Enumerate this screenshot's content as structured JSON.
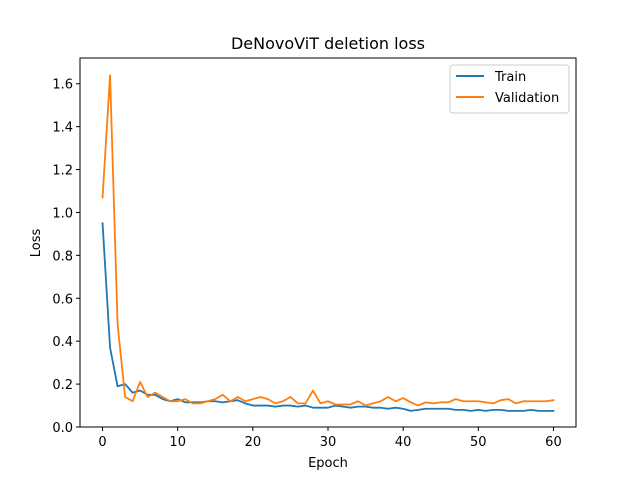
{
  "chart_data": {
    "type": "line",
    "title": "DeNovoViT deletion loss",
    "xlabel": "Epoch",
    "ylabel": "Loss",
    "xlim": [
      -3,
      63
    ],
    "ylim": [
      0,
      1.72
    ],
    "xticks": [
      0,
      10,
      20,
      30,
      40,
      50,
      60
    ],
    "yticks": [
      0.0,
      0.2,
      0.4,
      0.6,
      0.8,
      1.0,
      1.2,
      1.4,
      1.6
    ],
    "ytick_labels": [
      "0.0",
      "0.2",
      "0.4",
      "0.6",
      "0.8",
      "1.0",
      "1.2",
      "1.4",
      "1.6"
    ],
    "legend_position": "top-right",
    "grid": false,
    "series": [
      {
        "name": "Train",
        "color": "#1f77b4",
        "x": [
          0,
          1,
          2,
          3,
          4,
          5,
          6,
          7,
          8,
          9,
          10,
          11,
          12,
          13,
          14,
          15,
          16,
          17,
          18,
          19,
          20,
          21,
          22,
          23,
          24,
          25,
          26,
          27,
          28,
          29,
          30,
          31,
          32,
          33,
          34,
          35,
          36,
          37,
          38,
          39,
          40,
          41,
          42,
          43,
          44,
          45,
          46,
          47,
          48,
          49,
          50,
          51,
          52,
          53,
          54,
          55,
          56,
          57,
          58,
          59,
          60
        ],
        "values": [
          0.95,
          0.37,
          0.19,
          0.2,
          0.16,
          0.17,
          0.15,
          0.15,
          0.13,
          0.12,
          0.13,
          0.115,
          0.115,
          0.115,
          0.12,
          0.12,
          0.115,
          0.12,
          0.125,
          0.11,
          0.1,
          0.1,
          0.1,
          0.095,
          0.1,
          0.1,
          0.095,
          0.1,
          0.09,
          0.09,
          0.09,
          0.1,
          0.095,
          0.09,
          0.095,
          0.095,
          0.09,
          0.09,
          0.085,
          0.09,
          0.085,
          0.075,
          0.08,
          0.085,
          0.085,
          0.085,
          0.085,
          0.08,
          0.08,
          0.075,
          0.08,
          0.075,
          0.08,
          0.08,
          0.075,
          0.075,
          0.075,
          0.08,
          0.075,
          0.075,
          0.075
        ]
      },
      {
        "name": "Validation",
        "color": "#ff7f0e",
        "x": [
          0,
          1,
          2,
          3,
          4,
          5,
          6,
          7,
          8,
          9,
          10,
          11,
          12,
          13,
          14,
          15,
          16,
          17,
          18,
          19,
          20,
          21,
          22,
          23,
          24,
          25,
          26,
          27,
          28,
          29,
          30,
          31,
          32,
          33,
          34,
          35,
          36,
          37,
          38,
          39,
          40,
          41,
          42,
          43,
          44,
          45,
          46,
          47,
          48,
          49,
          50,
          51,
          52,
          53,
          54,
          55,
          56,
          57,
          58,
          59,
          60
        ],
        "values": [
          1.07,
          1.64,
          0.48,
          0.14,
          0.12,
          0.21,
          0.14,
          0.16,
          0.14,
          0.12,
          0.12,
          0.13,
          0.11,
          0.11,
          0.12,
          0.13,
          0.15,
          0.12,
          0.14,
          0.12,
          0.13,
          0.14,
          0.13,
          0.11,
          0.12,
          0.14,
          0.11,
          0.11,
          0.17,
          0.11,
          0.12,
          0.105,
          0.105,
          0.105,
          0.12,
          0.1,
          0.11,
          0.12,
          0.14,
          0.12,
          0.135,
          0.115,
          0.1,
          0.115,
          0.11,
          0.115,
          0.115,
          0.13,
          0.12,
          0.12,
          0.12,
          0.115,
          0.11,
          0.125,
          0.13,
          0.11,
          0.12,
          0.12,
          0.12,
          0.12,
          0.125
        ]
      }
    ]
  }
}
